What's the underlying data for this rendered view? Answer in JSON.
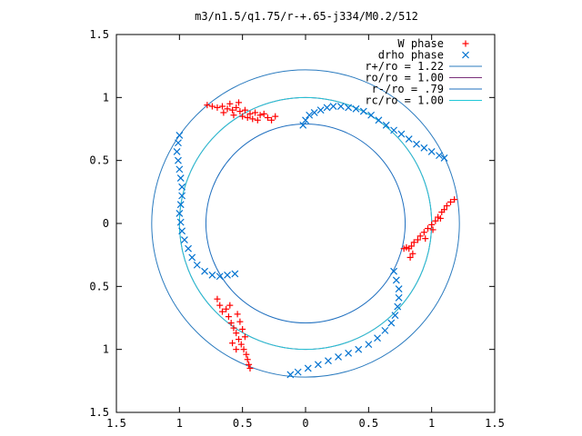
{
  "chart_data": {
    "type": "scatter",
    "title": "m3/n1.5/q1.75/r-+.65-j334/M0.2/512",
    "xlim": [
      -1.5,
      1.5
    ],
    "ylim": [
      -1.5,
      1.5
    ],
    "xticks": [
      -1.5,
      -1,
      -0.5,
      0,
      0.5,
      1,
      1.5
    ],
    "yticks": [
      -1.5,
      -1,
      -0.5,
      0,
      0.5,
      1,
      1.5
    ],
    "xtick_labels": [
      "1.5",
      "1",
      "0.5",
      "0",
      "0.5",
      "1",
      "1.5"
    ],
    "ytick_labels": [
      "1.5",
      "1",
      "0.5",
      "0",
      "0.5",
      "1",
      "1.5"
    ],
    "grid": false,
    "legend_position": "top-right",
    "series": [
      {
        "name": "W phase",
        "marker": "plus",
        "color": "#ff0000",
        "points": [
          [
            -0.78,
            0.94
          ],
          [
            -0.74,
            0.93
          ],
          [
            -0.7,
            0.92
          ],
          [
            -0.66,
            0.93
          ],
          [
            -0.62,
            0.91
          ],
          [
            -0.58,
            0.9
          ],
          [
            -0.55,
            0.92
          ],
          [
            -0.52,
            0.89
          ],
          [
            -0.48,
            0.9
          ],
          [
            -0.44,
            0.87
          ],
          [
            -0.4,
            0.88
          ],
          [
            -0.36,
            0.86
          ],
          [
            -0.33,
            0.87
          ],
          [
            -0.3,
            0.84
          ],
          [
            -0.27,
            0.82
          ],
          [
            -0.24,
            0.85
          ],
          [
            -0.65,
            0.88
          ],
          [
            -0.57,
            0.86
          ],
          [
            -0.5,
            0.85
          ],
          [
            -0.46,
            0.84
          ],
          [
            -0.42,
            0.83
          ],
          [
            -0.38,
            0.82
          ],
          [
            -0.6,
            0.95
          ],
          [
            -0.53,
            0.96
          ],
          [
            1.18,
            0.19
          ],
          [
            1.15,
            0.17
          ],
          [
            1.12,
            0.14
          ],
          [
            1.1,
            0.11
          ],
          [
            1.08,
            0.09
          ],
          [
            1.05,
            0.05
          ],
          [
            1.03,
            0.02
          ],
          [
            1.0,
            -0.01
          ],
          [
            0.97,
            -0.04
          ],
          [
            0.94,
            -0.07
          ],
          [
            0.91,
            -0.1
          ],
          [
            0.89,
            -0.13
          ],
          [
            0.86,
            -0.15
          ],
          [
            0.84,
            -0.18
          ],
          [
            0.82,
            -0.2
          ],
          [
            0.8,
            -0.19
          ],
          [
            0.78,
            -0.2
          ],
          [
            0.85,
            -0.24
          ],
          [
            0.83,
            -0.27
          ],
          [
            1.07,
            0.04
          ],
          [
            1.01,
            -0.05
          ],
          [
            0.95,
            -0.12
          ],
          [
            -0.7,
            -0.6
          ],
          [
            -0.68,
            -0.65
          ],
          [
            -0.66,
            -0.7
          ],
          [
            -0.63,
            -0.68
          ],
          [
            -0.61,
            -0.74
          ],
          [
            -0.59,
            -0.79
          ],
          [
            -0.57,
            -0.83
          ],
          [
            -0.55,
            -0.87
          ],
          [
            -0.53,
            -0.92
          ],
          [
            -0.51,
            -0.96
          ],
          [
            -0.49,
            -1.0
          ],
          [
            -0.47,
            -1.04
          ],
          [
            -0.46,
            -1.08
          ],
          [
            -0.45,
            -1.12
          ],
          [
            -0.44,
            -1.15
          ],
          [
            -0.52,
            -0.78
          ],
          [
            -0.5,
            -0.84
          ],
          [
            -0.48,
            -0.9
          ],
          [
            -0.58,
            -0.95
          ],
          [
            -0.55,
            -1.0
          ],
          [
            -0.6,
            -0.65
          ],
          [
            -0.54,
            -0.72
          ]
        ]
      },
      {
        "name": "drho phase",
        "marker": "cross",
        "color": "#0072d0",
        "points": [
          [
            -0.02,
            0.78
          ],
          [
            0.0,
            0.82
          ],
          [
            0.03,
            0.86
          ],
          [
            0.07,
            0.88
          ],
          [
            0.12,
            0.9
          ],
          [
            0.17,
            0.92
          ],
          [
            0.22,
            0.93
          ],
          [
            0.28,
            0.93
          ],
          [
            0.34,
            0.92
          ],
          [
            0.4,
            0.91
          ],
          [
            0.46,
            0.89
          ],
          [
            0.52,
            0.86
          ],
          [
            0.58,
            0.82
          ],
          [
            0.64,
            0.78
          ],
          [
            0.7,
            0.74
          ],
          [
            0.76,
            0.71
          ],
          [
            0.82,
            0.67
          ],
          [
            0.88,
            0.63
          ],
          [
            0.94,
            0.6
          ],
          [
            1.0,
            0.57
          ],
          [
            1.06,
            0.54
          ],
          [
            1.1,
            0.52
          ],
          [
            -1.0,
            0.7
          ],
          [
            -1.01,
            0.64
          ],
          [
            -1.02,
            0.57
          ],
          [
            -1.01,
            0.5
          ],
          [
            -1.0,
            0.43
          ],
          [
            -0.99,
            0.36
          ],
          [
            -0.98,
            0.29
          ],
          [
            -0.98,
            0.22
          ],
          [
            -0.99,
            0.15
          ],
          [
            -1.0,
            0.08
          ],
          [
            -0.99,
            0.01
          ],
          [
            -0.98,
            -0.06
          ],
          [
            -0.96,
            -0.13
          ],
          [
            -0.93,
            -0.2
          ],
          [
            -0.9,
            -0.27
          ],
          [
            -0.86,
            -0.33
          ],
          [
            -0.8,
            -0.38
          ],
          [
            -0.74,
            -0.41
          ],
          [
            -0.68,
            -0.42
          ],
          [
            -0.62,
            -0.41
          ],
          [
            -0.56,
            -0.4
          ],
          [
            0.7,
            -0.38
          ],
          [
            0.72,
            -0.45
          ],
          [
            0.74,
            -0.52
          ],
          [
            0.74,
            -0.59
          ],
          [
            0.73,
            -0.66
          ],
          [
            0.71,
            -0.73
          ],
          [
            0.68,
            -0.79
          ],
          [
            0.63,
            -0.85
          ],
          [
            0.57,
            -0.91
          ],
          [
            0.5,
            -0.96
          ],
          [
            0.42,
            -1.0
          ],
          [
            0.34,
            -1.03
          ],
          [
            0.26,
            -1.06
          ],
          [
            0.18,
            -1.09
          ],
          [
            0.1,
            -1.12
          ],
          [
            0.02,
            -1.15
          ],
          [
            -0.06,
            -1.18
          ],
          [
            -0.12,
            -1.2
          ]
        ]
      }
    ],
    "circles": [
      {
        "name": "r+/ro = 1.22",
        "r": 1.22,
        "color": "#2b7bbf"
      },
      {
        "name": "ro/ro = 1.00",
        "r": 1.0,
        "color": "#7a2f7a"
      },
      {
        "name": "r-/ro = .79",
        "r": 0.79,
        "color": "#1f6fbf"
      },
      {
        "name": "rc/ro = 1.00",
        "r": 1.0,
        "color": "#20c8d8"
      }
    ]
  }
}
